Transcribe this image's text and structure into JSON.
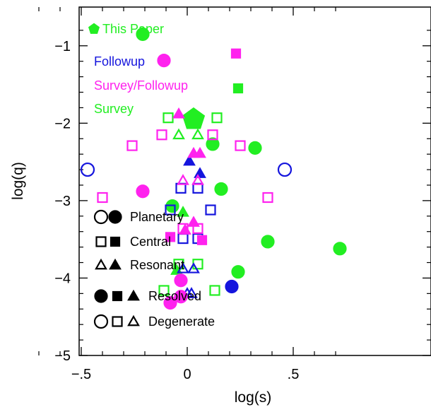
{
  "chart_data": {
    "type": "scatter",
    "xlabel": "log(s)",
    "ylabel": "log(q)",
    "xlim": [
      -0.8,
      0.8
    ],
    "ylim": [
      -5,
      -0.5
    ],
    "xticks": [
      {
        "value": -0.5,
        "label": "−.5"
      },
      {
        "value": 0,
        "label": "0"
      },
      {
        "value": 0.5,
        "label": ".5"
      }
    ],
    "yticks": [
      {
        "value": -1,
        "label": "−1"
      },
      {
        "value": -2,
        "label": "−2"
      },
      {
        "value": -3,
        "label": "−3"
      },
      {
        "value": -4,
        "label": "−4"
      },
      {
        "value": -5,
        "label": "−5"
      }
    ],
    "x_minor_step": 0.1,
    "y_minor_step": 0.2,
    "colors": {
      "this_paper": "#22ee22",
      "followup": "#1515dd",
      "survey_followup": "#ff22ee",
      "survey": "#22ee22"
    },
    "legend_sources": [
      {
        "label": "This Paper",
        "color": "#22ee22",
        "marker": "pentagon"
      },
      {
        "label": "Followup",
        "color": "#1515dd"
      },
      {
        "label": "Survey/Followup",
        "color": "#ff22ee"
      },
      {
        "label": "Survey",
        "color": "#22ee22"
      }
    ],
    "legend_shapes": [
      {
        "label": "Planetary",
        "shape": "circle"
      },
      {
        "label": "Central",
        "shape": "square"
      },
      {
        "label": "Resonant",
        "shape": "triangle"
      }
    ],
    "legend_fill": [
      {
        "label": "Resolved",
        "filled": true
      },
      {
        "label": "Degenerate",
        "filled": false
      }
    ],
    "points": [
      {
        "x": 0.03,
        "y": -1.95,
        "shape": "pentagon",
        "filled": true,
        "color": "#22ee22",
        "size": "large"
      },
      {
        "x": -0.21,
        "y": -0.85,
        "shape": "circle",
        "filled": true,
        "color": "#22ee22"
      },
      {
        "x": 0.12,
        "y": -2.27,
        "shape": "circle",
        "filled": true,
        "color": "#22ee22"
      },
      {
        "x": 0.32,
        "y": -2.32,
        "shape": "circle",
        "filled": true,
        "color": "#22ee22"
      },
      {
        "x": 0.16,
        "y": -2.85,
        "shape": "circle",
        "filled": true,
        "color": "#22ee22"
      },
      {
        "x": -0.07,
        "y": -3.07,
        "shape": "circle",
        "filled": true,
        "color": "#22ee22"
      },
      {
        "x": 0.38,
        "y": -3.53,
        "shape": "circle",
        "filled": true,
        "color": "#22ee22"
      },
      {
        "x": 0.72,
        "y": -3.62,
        "shape": "circle",
        "filled": true,
        "color": "#22ee22"
      },
      {
        "x": 0.24,
        "y": -3.92,
        "shape": "circle",
        "filled": true,
        "color": "#22ee22"
      },
      {
        "x": 0.24,
        "y": -1.55,
        "shape": "square",
        "filled": true,
        "color": "#22ee22"
      },
      {
        "x": -0.09,
        "y": -1.93,
        "shape": "square",
        "filled": false,
        "color": "#22ee22"
      },
      {
        "x": 0.14,
        "y": -1.93,
        "shape": "square",
        "filled": false,
        "color": "#22ee22"
      },
      {
        "x": -0.04,
        "y": -3.82,
        "shape": "square",
        "filled": false,
        "color": "#22ee22"
      },
      {
        "x": 0.05,
        "y": -3.82,
        "shape": "square",
        "filled": false,
        "color": "#22ee22"
      },
      {
        "x": -0.11,
        "y": -4.16,
        "shape": "square",
        "filled": false,
        "color": "#22ee22"
      },
      {
        "x": 0.13,
        "y": -4.16,
        "shape": "square",
        "filled": false,
        "color": "#22ee22"
      },
      {
        "x": -0.04,
        "y": -2.15,
        "shape": "triangle",
        "filled": false,
        "color": "#22ee22"
      },
      {
        "x": 0.05,
        "y": -2.15,
        "shape": "triangle",
        "filled": false,
        "color": "#22ee22"
      },
      {
        "x": -0.02,
        "y": -3.15,
        "shape": "triangle",
        "filled": true,
        "color": "#22ee22"
      },
      {
        "x": -0.05,
        "y": -3.9,
        "shape": "triangle",
        "filled": true,
        "color": "#22ee22"
      },
      {
        "x": -0.47,
        "y": -2.6,
        "shape": "circle",
        "filled": false,
        "color": "#1515dd"
      },
      {
        "x": 0.46,
        "y": -2.6,
        "shape": "circle",
        "filled": false,
        "color": "#1515dd"
      },
      {
        "x": 0.21,
        "y": -4.11,
        "shape": "circle",
        "filled": true,
        "color": "#1515dd"
      },
      {
        "x": -0.03,
        "y": -2.84,
        "shape": "square",
        "filled": false,
        "color": "#1515dd"
      },
      {
        "x": 0.05,
        "y": -2.84,
        "shape": "square",
        "filled": false,
        "color": "#1515dd"
      },
      {
        "x": -0.08,
        "y": -3.12,
        "shape": "square",
        "filled": false,
        "color": "#1515dd"
      },
      {
        "x": 0.11,
        "y": -3.12,
        "shape": "square",
        "filled": false,
        "color": "#1515dd"
      },
      {
        "x": -0.02,
        "y": -3.49,
        "shape": "square",
        "filled": false,
        "color": "#1515dd"
      },
      {
        "x": 0.05,
        "y": -3.49,
        "shape": "square",
        "filled": false,
        "color": "#1515dd"
      },
      {
        "x": 0.01,
        "y": -2.49,
        "shape": "triangle",
        "filled": true,
        "color": "#1515dd"
      },
      {
        "x": 0.06,
        "y": -2.65,
        "shape": "triangle",
        "filled": true,
        "color": "#1515dd"
      },
      {
        "x": -0.02,
        "y": -3.88,
        "shape": "triangle",
        "filled": false,
        "color": "#1515dd"
      },
      {
        "x": 0.03,
        "y": -3.88,
        "shape": "triangle",
        "filled": false,
        "color": "#1515dd"
      },
      {
        "x": 0.0,
        "y": -4.2,
        "shape": "triangle",
        "filled": false,
        "color": "#1515dd"
      },
      {
        "x": 0.02,
        "y": -4.2,
        "shape": "triangle",
        "filled": false,
        "color": "#1515dd"
      },
      {
        "x": -0.11,
        "y": -1.19,
        "shape": "circle",
        "filled": true,
        "color": "#ff22ee"
      },
      {
        "x": -0.21,
        "y": -2.88,
        "shape": "circle",
        "filled": true,
        "color": "#ff22ee"
      },
      {
        "x": -0.03,
        "y": -4.03,
        "shape": "circle",
        "filled": true,
        "color": "#ff22ee"
      },
      {
        "x": -0.03,
        "y": -4.24,
        "shape": "circle",
        "filled": true,
        "color": "#ff22ee"
      },
      {
        "x": -0.08,
        "y": -4.32,
        "shape": "circle",
        "filled": true,
        "color": "#ff22ee"
      },
      {
        "x": 0.23,
        "y": -1.1,
        "shape": "square",
        "filled": true,
        "color": "#ff22ee"
      },
      {
        "x": -0.12,
        "y": -2.15,
        "shape": "square",
        "filled": false,
        "color": "#ff22ee"
      },
      {
        "x": 0.12,
        "y": -2.15,
        "shape": "square",
        "filled": false,
        "color": "#ff22ee"
      },
      {
        "x": -0.26,
        "y": -2.29,
        "shape": "square",
        "filled": false,
        "color": "#ff22ee"
      },
      {
        "x": 0.25,
        "y": -2.29,
        "shape": "square",
        "filled": false,
        "color": "#ff22ee"
      },
      {
        "x": -0.4,
        "y": -2.96,
        "shape": "square",
        "filled": false,
        "color": "#ff22ee"
      },
      {
        "x": 0.38,
        "y": -2.96,
        "shape": "square",
        "filled": false,
        "color": "#ff22ee"
      },
      {
        "x": -0.02,
        "y": -3.36,
        "shape": "square",
        "filled": false,
        "color": "#ff22ee"
      },
      {
        "x": 0.05,
        "y": -3.36,
        "shape": "square",
        "filled": false,
        "color": "#ff22ee"
      },
      {
        "x": -0.08,
        "y": -3.47,
        "shape": "square",
        "filled": true,
        "color": "#ff22ee"
      },
      {
        "x": 0.07,
        "y": -3.51,
        "shape": "square",
        "filled": true,
        "color": "#ff22ee"
      },
      {
        "x": -0.04,
        "y": -1.88,
        "shape": "triangle",
        "filled": true,
        "color": "#ff22ee"
      },
      {
        "x": 0.03,
        "y": -2.39,
        "shape": "triangle",
        "filled": true,
        "color": "#ff22ee"
      },
      {
        "x": 0.06,
        "y": -2.39,
        "shape": "triangle",
        "filled": true,
        "color": "#ff22ee"
      },
      {
        "x": -0.02,
        "y": -2.74,
        "shape": "triangle",
        "filled": false,
        "color": "#ff22ee"
      },
      {
        "x": 0.05,
        "y": -2.74,
        "shape": "triangle",
        "filled": false,
        "color": "#ff22ee"
      },
      {
        "x": 0.03,
        "y": -3.28,
        "shape": "triangle",
        "filled": true,
        "color": "#ff22ee"
      },
      {
        "x": -0.01,
        "y": -3.38,
        "shape": "triangle",
        "filled": true,
        "color": "#ff22ee"
      }
    ]
  }
}
